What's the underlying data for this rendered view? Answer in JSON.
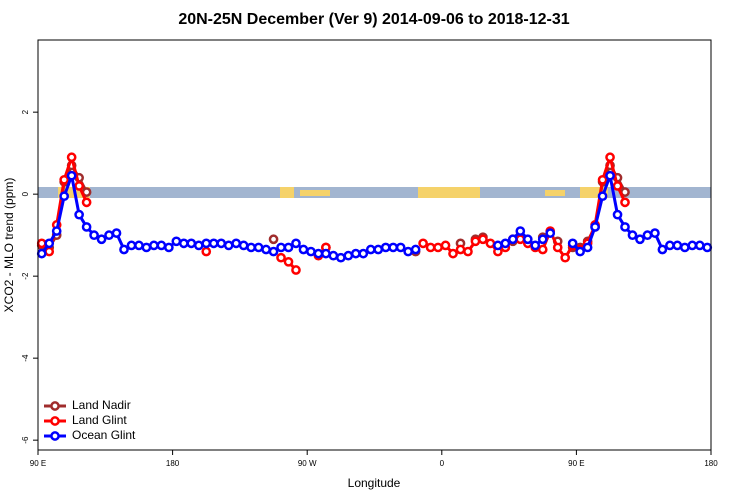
{
  "chart_data": {
    "type": "line",
    "title": "20N-25N December (Ver 9)   2014-09-06 to 2018-12-31",
    "xlabel": "Longitude",
    "ylabel": "XCO2 - MLO trend (ppm)",
    "xlim": [
      90,
      540
    ],
    "xticks": [
      {
        "value": 90,
        "label": "90 E"
      },
      {
        "value": 180,
        "label": "180"
      },
      {
        "value": 270,
        "label": "90 W"
      },
      {
        "value": 360,
        "label": "0"
      },
      {
        "value": 450,
        "label": "90 E"
      },
      {
        "value": 540,
        "label": "180"
      }
    ],
    "ylim": [
      -6.24,
      3.76
    ],
    "yticks": [
      2,
      0,
      -2,
      -4,
      -6
    ],
    "legend": "bottom-left",
    "x": [
      92.5,
      97.5,
      102.5,
      107.5,
      112.5,
      117.5,
      122.5,
      127.5,
      132.5,
      137.5,
      142.5,
      147.5,
      152.5,
      157.5,
      162.5,
      167.5,
      172.5,
      177.5,
      182.5,
      187.5,
      192.5,
      197.5,
      202.5,
      207.5,
      212.5,
      217.5,
      222.5,
      227.5,
      232.5,
      237.5,
      242.5,
      247.5,
      252.5,
      257.5,
      262.5,
      267.5,
      272.5,
      277.5,
      282.5,
      287.5,
      292.5,
      297.5,
      302.5,
      307.5,
      312.5,
      317.5,
      322.5,
      327.5,
      332.5,
      337.5,
      342.5,
      347.5,
      352.5,
      357.5,
      362.5,
      367.5,
      372.5,
      377.5,
      382.5,
      387.5,
      392.5,
      397.5,
      402.5,
      407.5,
      412.5,
      417.5,
      422.5,
      427.5,
      432.5,
      437.5,
      442.5,
      447.5,
      452.5,
      457.5,
      462.5,
      467.5,
      472.5,
      477.5,
      482.5,
      487.5,
      492.5,
      497.5,
      502.5,
      507.5,
      512.5,
      517.5,
      522.5,
      527.5,
      532.5,
      537.5
    ],
    "series": [
      {
        "name": "Land Nadir",
        "color": "#a02c2c",
        "values": [
          -1.25,
          -1.3,
          -1.0,
          0.3,
          0.7,
          0.4,
          0.05,
          null,
          null,
          null,
          null,
          null,
          null,
          null,
          null,
          null,
          null,
          null,
          null,
          null,
          null,
          null,
          null,
          null,
          null,
          null,
          null,
          null,
          null,
          null,
          null,
          -1.1,
          null,
          null,
          null,
          null,
          null,
          null,
          -1.3,
          null,
          null,
          null,
          null,
          null,
          null,
          null,
          null,
          null,
          null,
          null,
          -1.4,
          null,
          null,
          null,
          null,
          null,
          -1.2,
          null,
          -1.1,
          -1.05,
          null,
          null,
          null,
          -1.15,
          null,
          null,
          null,
          -1.05,
          null,
          -1.15,
          null,
          -1.3,
          -1.3,
          -1.15,
          -0.8,
          0.3,
          0.7,
          0.4,
          0.05,
          null,
          null,
          null,
          null,
          null,
          null,
          null,
          null,
          null,
          null,
          null
        ]
      },
      {
        "name": "Land Glint",
        "color": "#ff0000",
        "values": [
          -1.2,
          -1.4,
          -0.75,
          0.35,
          0.9,
          0.2,
          -0.2,
          null,
          null,
          null,
          null,
          null,
          null,
          null,
          null,
          null,
          null,
          null,
          null,
          null,
          null,
          null,
          -1.4,
          null,
          null,
          null,
          null,
          null,
          null,
          null,
          null,
          null,
          -1.55,
          -1.65,
          -1.85,
          null,
          null,
          -1.5,
          -1.3,
          null,
          null,
          null,
          null,
          null,
          null,
          null,
          null,
          null,
          null,
          null,
          null,
          -1.2,
          -1.3,
          -1.3,
          -1.25,
          -1.45,
          -1.35,
          -1.4,
          -1.15,
          -1.1,
          -1.2,
          -1.4,
          -1.3,
          -1.1,
          -1.1,
          -1.2,
          -1.3,
          -1.35,
          -0.9,
          -1.3,
          -1.55,
          -1.25,
          -1.35,
          -1.2,
          -0.75,
          0.35,
          0.9,
          0.2,
          -0.2,
          null,
          null,
          null,
          null,
          null,
          null,
          null,
          null,
          null,
          null,
          null
        ]
      },
      {
        "name": "Ocean Glint",
        "color": "#0000ff",
        "values": [
          -1.45,
          -1.2,
          -0.9,
          -0.05,
          0.45,
          -0.5,
          -0.8,
          -1.0,
          -1.1,
          -1.0,
          -0.95,
          -1.35,
          -1.25,
          -1.25,
          -1.3,
          -1.25,
          -1.25,
          -1.3,
          -1.15,
          -1.2,
          -1.2,
          -1.25,
          -1.2,
          -1.2,
          -1.2,
          -1.25,
          -1.2,
          -1.25,
          -1.3,
          -1.3,
          -1.35,
          -1.4,
          -1.3,
          -1.3,
          -1.2,
          -1.35,
          -1.4,
          -1.45,
          -1.45,
          -1.5,
          -1.55,
          -1.5,
          -1.45,
          -1.45,
          -1.35,
          -1.35,
          -1.3,
          -1.3,
          -1.3,
          -1.4,
          -1.35,
          null,
          null,
          null,
          null,
          null,
          null,
          null,
          null,
          null,
          null,
          -1.25,
          -1.2,
          -1.1,
          -0.9,
          -1.1,
          -1.25,
          -1.1,
          -0.95,
          null,
          null,
          -1.2,
          -1.4,
          -1.3,
          -0.8,
          -0.05,
          0.45,
          -0.5,
          -0.8,
          -1.0,
          -1.1,
          -1.0,
          -0.95,
          -1.35,
          -1.25,
          -1.25,
          -1.3,
          -1.25,
          -1.25,
          -1.3
        ]
      }
    ]
  }
}
